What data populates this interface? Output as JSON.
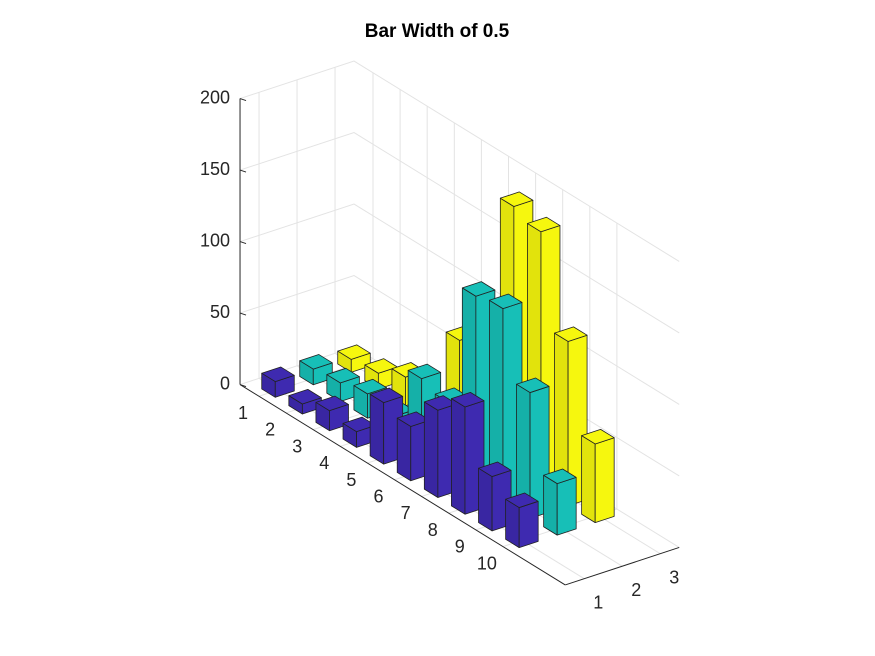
{
  "chart_data": {
    "type": "bar3",
    "title": "Bar Width of 0.5",
    "bar_width": 0.5,
    "xticks": [
      1,
      2,
      3,
      4,
      5,
      6,
      7,
      8,
      9,
      10
    ],
    "yticks": [
      1,
      2,
      3
    ],
    "zlim": [
      0,
      200
    ],
    "zticks": [
      0,
      50,
      100,
      150,
      200
    ],
    "grid": true,
    "series": [
      {
        "color": "#3e2ab0",
        "values": [
          11,
          7,
          14,
          11,
          43,
          38,
          61,
          75,
          38,
          28
        ]
      },
      {
        "color": "#17bfb7",
        "values": [
          11,
          13,
          17,
          13,
          51,
          46,
          132,
          135,
          88,
          36
        ]
      },
      {
        "color": "#f6f70e",
        "values": [
          9,
          11,
          20,
          9,
          69,
          76,
          186,
          180,
          115,
          55
        ]
      }
    ]
  }
}
